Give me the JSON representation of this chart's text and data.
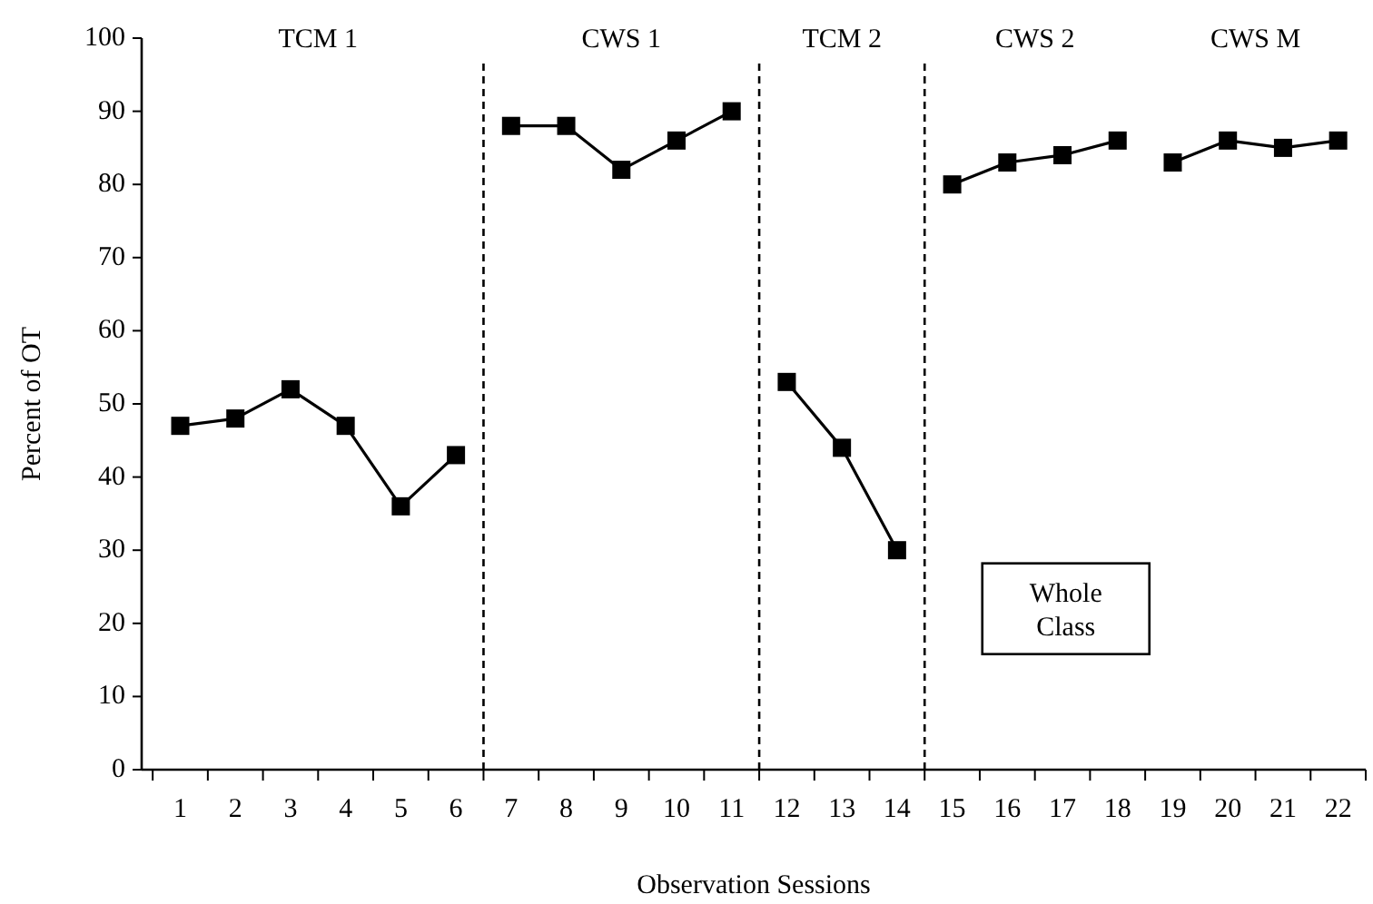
{
  "chart_data": {
    "type": "line",
    "xlabel": "Observation Sessions",
    "ylabel": "Percent of OT",
    "marker": "square",
    "grid": false,
    "line_style": "solid",
    "xlim": [
      0.3,
      22.5
    ],
    "ylim": [
      0,
      100
    ],
    "yticks": [
      0,
      10,
      20,
      30,
      40,
      50,
      60,
      70,
      80,
      90,
      100
    ],
    "xticks": [
      1,
      2,
      3,
      4,
      5,
      6,
      7,
      8,
      9,
      10,
      11,
      12,
      13,
      14,
      15,
      16,
      17,
      18,
      19,
      20,
      21,
      22,
      {
        "value": 0.5,
        "label": null
      },
      {
        "value": 1.5,
        "label": null
      },
      {
        "value": 2.5,
        "label": null
      },
      {
        "value": 3.5,
        "label": null
      },
      {
        "value": 4.5,
        "label": null
      },
      {
        "value": 5.5,
        "label": null
      },
      {
        "value": 6.5,
        "label": null
      },
      {
        "value": 7.5,
        "label": null
      },
      {
        "value": 8.5,
        "label": null
      },
      {
        "value": 9.5,
        "label": null
      },
      {
        "value": 10.5,
        "label": null
      },
      {
        "value": 11.5,
        "label": null
      },
      {
        "value": 12.5,
        "label": null
      },
      {
        "value": 13.5,
        "label": null
      },
      {
        "value": 14.5,
        "label": null
      },
      {
        "value": 15.5,
        "label": null
      },
      {
        "value": 16.5,
        "label": null
      },
      {
        "value": 17.5,
        "label": null
      },
      {
        "value": 18.5,
        "label": null
      },
      {
        "value": 19.5,
        "label": null
      },
      {
        "value": 20.5,
        "label": null
      },
      {
        "value": 21.5,
        "label": null
      },
      {
        "value": 22.5,
        "label": null
      }
    ],
    "series": [
      {
        "color": "#000000",
        "x": [
          1,
          2,
          3,
          4,
          5,
          6
        ],
        "values": [
          47,
          48,
          52,
          47,
          36,
          43
        ]
      },
      {
        "color": "#000000",
        "x": [
          7,
          8,
          9,
          10,
          11
        ],
        "values": [
          88,
          88,
          82,
          86,
          90
        ]
      },
      {
        "color": "#000000",
        "x": [
          12,
          13,
          14
        ],
        "values": [
          53,
          44,
          30
        ]
      },
      {
        "color": "#000000",
        "x": [
          15,
          16,
          17,
          18
        ],
        "values": [
          80,
          83,
          84,
          86
        ]
      },
      {
        "color": "#000000",
        "x": [
          19,
          20,
          21,
          22
        ],
        "values": [
          83,
          86,
          85,
          86
        ]
      }
    ],
    "ref_lines": [
      {
        "axis": "x",
        "value": 6.5,
        "color": "#000000",
        "line_style": "dashed"
      },
      {
        "axis": "x",
        "value": 11.5,
        "color": "#000000",
        "line_style": "dashed"
      },
      {
        "axis": "x",
        "value": 14.5,
        "color": "#000000",
        "line_style": "dashed"
      }
    ],
    "annotations": [
      "TCM 1",
      "CWS 1",
      "TCM 2",
      "CWS 2",
      "CWS M",
      "Whole\nClass"
    ]
  }
}
